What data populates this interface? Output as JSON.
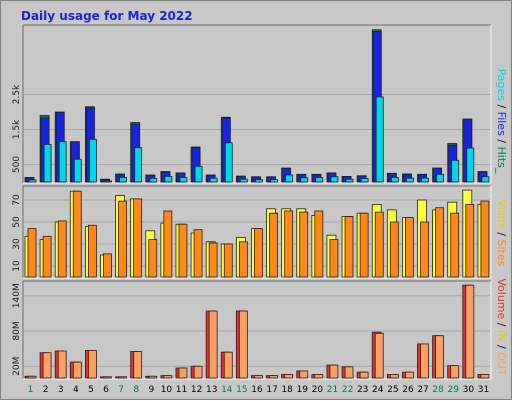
{
  "title": "Daily usage for May 2022",
  "colors": {
    "background": "#c8c8c8",
    "pages": "#00d8e8",
    "files": "#1a24e0",
    "hits": "#008040",
    "visits": "#ffff40",
    "sites": "#ff8818",
    "kbytes": "#e83030",
    "in_out": "#ffa060",
    "weekday_label": "#000000",
    "weekend_label": "#008040"
  },
  "legend": {
    "top": [
      {
        "text": "Pages",
        "color": "#00d8e8"
      },
      {
        "text": " / ",
        "color": "#1a1a1a"
      },
      {
        "text": "Files",
        "color": "#1a24e0"
      },
      {
        "text": " / ",
        "color": "#1a1a1a"
      },
      {
        "text": "Hits_",
        "color": "#008040"
      }
    ],
    "middle": [
      {
        "text": "Visits",
        "color": "#e0d000"
      },
      {
        "text": " / ",
        "color": "#1a1a1a"
      },
      {
        "text": "Sites",
        "color": "#ff8818"
      }
    ],
    "bottom": [
      {
        "text": "Volume",
        "color": "#e83030"
      },
      {
        "text": " / ",
        "color": "#1a1a1a"
      },
      {
        "text": "IN",
        "color": "#e0d000"
      },
      {
        "text": " / ",
        "color": "#1a1a1a"
      },
      {
        "text": "OUT",
        "color": "#ffa060"
      }
    ]
  },
  "chart_data": [
    {
      "type": "bar",
      "name": "hits-files-pages",
      "x": [
        1,
        2,
        3,
        4,
        5,
        6,
        7,
        8,
        9,
        10,
        11,
        12,
        13,
        14,
        15,
        16,
        17,
        18,
        19,
        20,
        21,
        22,
        23,
        24,
        25,
        26,
        27,
        28,
        29,
        30,
        31
      ],
      "yticks": [
        "500",
        "1.5k",
        "2.5k"
      ],
      "ytick_values": [
        500,
        1500,
        2500
      ],
      "ylim": [
        0,
        4400
      ],
      "series": [
        {
          "name": "Hits",
          "values": [
            130,
            1900,
            2000,
            1150,
            2150,
            80,
            230,
            1700,
            200,
            300,
            260,
            1000,
            200,
            1850,
            170,
            150,
            150,
            400,
            220,
            220,
            260,
            160,
            180,
            4350,
            250,
            230,
            220,
            400,
            1100,
            1800,
            300
          ]
        },
        {
          "name": "Files",
          "values": [
            110,
            1830,
            1980,
            1150,
            2120,
            70,
            210,
            1650,
            190,
            280,
            240,
            980,
            190,
            1830,
            150,
            140,
            140,
            380,
            210,
            210,
            250,
            150,
            170,
            4300,
            240,
            220,
            210,
            380,
            1050,
            1780,
            280
          ]
        },
        {
          "name": "Pages",
          "values": [
            60,
            1070,
            1150,
            650,
            1220,
            30,
            130,
            980,
            100,
            160,
            130,
            450,
            110,
            1120,
            80,
            70,
            70,
            200,
            120,
            130,
            150,
            80,
            100,
            2430,
            130,
            110,
            110,
            220,
            620,
            970,
            150
          ]
        }
      ]
    },
    {
      "type": "bar",
      "name": "visits-sites",
      "x": [
        1,
        2,
        3,
        4,
        5,
        6,
        7,
        8,
        9,
        10,
        11,
        12,
        13,
        14,
        15,
        16,
        17,
        18,
        19,
        20,
        21,
        22,
        23,
        24,
        25,
        26,
        27,
        28,
        29,
        30,
        31
      ],
      "yticks": [
        "10",
        "30",
        "50",
        "70"
      ],
      "ytick_values": [
        10,
        30,
        50,
        70
      ],
      "ylim": [
        0,
        80
      ],
      "series": [
        {
          "name": "Visits",
          "values": [
            37,
            34,
            50,
            78,
            46,
            20,
            74,
            71,
            42,
            49,
            48,
            40,
            32,
            30,
            36,
            44,
            62,
            62,
            62,
            56,
            38,
            55,
            58,
            66,
            61,
            54,
            70,
            61,
            68,
            79,
            66
          ]
        },
        {
          "name": "Sites",
          "values": [
            44,
            37,
            51,
            78,
            47,
            21,
            69,
            71,
            34,
            60,
            48,
            43,
            31,
            30,
            32,
            44,
            58,
            60,
            59,
            60,
            34,
            55,
            58,
            59,
            50,
            54,
            50,
            63,
            58,
            66,
            69
          ]
        }
      ]
    },
    {
      "type": "bar",
      "name": "volume-in-out",
      "x": [
        1,
        2,
        3,
        4,
        5,
        6,
        7,
        8,
        9,
        10,
        11,
        12,
        13,
        14,
        15,
        16,
        17,
        18,
        19,
        20,
        21,
        22,
        23,
        24,
        25,
        26,
        27,
        28,
        29,
        30,
        31
      ],
      "yticks": [
        "20M",
        "80M",
        "140M"
      ],
      "ytick_values": [
        20,
        80,
        140
      ],
      "ylim": [
        0,
        160
      ],
      "series": [
        {
          "name": "Volume",
          "values": [
            3,
            43,
            46,
            27,
            47,
            2,
            2,
            45,
            3,
            4,
            17,
            20,
            114,
            44,
            114,
            4,
            4,
            6,
            12,
            6,
            22,
            19,
            10,
            78,
            6,
            10,
            58,
            72,
            21,
            158,
            6
          ]
        },
        {
          "name": "IN",
          "values": [
            0,
            0,
            0,
            0,
            0,
            0,
            0,
            0,
            0,
            0,
            0,
            0,
            0,
            0,
            0,
            0,
            0,
            0,
            0,
            0,
            0,
            0,
            0,
            0,
            0,
            0,
            0,
            0,
            0,
            0,
            0
          ]
        },
        {
          "name": "OUT",
          "values": [
            3,
            43,
            46,
            27,
            47,
            2,
            2,
            45,
            3,
            4,
            17,
            20,
            114,
            44,
            114,
            4,
            4,
            6,
            12,
            6,
            22,
            19,
            10,
            76,
            6,
            10,
            58,
            72,
            21,
            158,
            6
          ]
        }
      ]
    }
  ],
  "day_labels": [
    "1",
    "2",
    "3",
    "4",
    "5",
    "6",
    "7",
    "8",
    "9",
    "10",
    "11",
    "12",
    "13",
    "14",
    "15",
    "16",
    "17",
    "18",
    "19",
    "20",
    "21",
    "22",
    "23",
    "24",
    "25",
    "26",
    "27",
    "28",
    "29",
    "30",
    "31"
  ],
  "weekend_days": [
    1,
    7,
    8,
    14,
    15,
    21,
    22,
    28,
    29
  ]
}
